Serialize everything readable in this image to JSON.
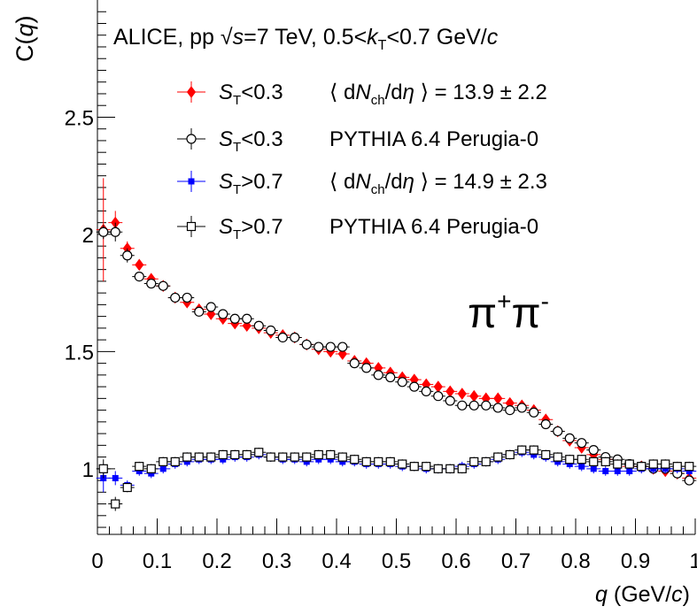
{
  "chart_data": {
    "type": "scatter",
    "header": {
      "prefix": "ALICE,  pp ",
      "sqrt": "√",
      "s": "s",
      "energy": "=7 TeV,  0.5<",
      "k": "k",
      "k_sub": "T",
      "range_tail": "<0.7 GeV/",
      "c": "c"
    },
    "annotation": {
      "main": "π",
      "sup1": "+",
      "main2": "π",
      "sup2": "-"
    },
    "ylabel": {
      "prefix": "C(",
      "q": "q",
      "suffix": ")"
    },
    "xlabel": {
      "q": "q",
      "mid": " (GeV/",
      "c": "c",
      "end": ")"
    },
    "xlim": [
      0,
      1
    ],
    "ylim": [
      0.72,
      3.0
    ],
    "x_ticks": [
      "0",
      "0.1",
      "0.2",
      "0.3",
      "0.4",
      "0.5",
      "0.6",
      "0.7",
      "0.8",
      "0.9",
      "1"
    ],
    "y_ticks": [
      "1",
      "1.5",
      "2",
      "2.5"
    ],
    "y_tick_values": [
      1,
      1.5,
      2,
      2.5
    ],
    "legend": [
      {
        "S": "S",
        "sub": "T",
        "cut": "<0.3",
        "desc1": "⟨ d",
        "N": "N",
        "nsub": "ch",
        "desc2": "/d",
        "eta": "η",
        "desc3": " ⟩ = 13.9 ± 2.2",
        "color": "#ff0000",
        "marker": "diamond"
      },
      {
        "S": "S",
        "sub": "T",
        "cut": "<0.3",
        "desc1": "PYTHIA 6.4 Perugia-0",
        "N": "",
        "nsub": "",
        "desc2": "",
        "eta": "",
        "desc3": "",
        "color": "#000000",
        "marker": "open-circle"
      },
      {
        "S": "S",
        "sub": "T",
        "cut": ">0.7",
        "desc1": "⟨ d",
        "N": "N",
        "nsub": "ch",
        "desc2": "/d",
        "eta": "η",
        "desc3": " ⟩ = 14.9 ± 2.3",
        "color": "#0000ff",
        "marker": "filled-square"
      },
      {
        "S": "S",
        "sub": "T",
        "cut": ">0.7",
        "desc1": "PYTHIA 6.4 Perugia-0",
        "N": "",
        "nsub": "",
        "desc2": "",
        "eta": "",
        "desc3": "",
        "color": "#000000",
        "marker": "open-square"
      }
    ],
    "x": [
      0.01,
      0.03,
      0.05,
      0.07,
      0.09,
      0.11,
      0.13,
      0.15,
      0.17,
      0.19,
      0.21,
      0.23,
      0.25,
      0.27,
      0.29,
      0.31,
      0.33,
      0.35,
      0.37,
      0.39,
      0.41,
      0.43,
      0.45,
      0.47,
      0.49,
      0.51,
      0.53,
      0.55,
      0.57,
      0.59,
      0.61,
      0.63,
      0.65,
      0.67,
      0.69,
      0.71,
      0.73,
      0.75,
      0.77,
      0.79,
      0.81,
      0.83,
      0.85,
      0.87,
      0.89,
      0.91,
      0.93,
      0.95,
      0.97,
      0.99
    ],
    "series": [
      {
        "name": "ST<0.3 data",
        "color": "#ff0000",
        "marker": "diamond",
        "values": [
          2.02,
          2.05,
          1.94,
          1.87,
          1.81,
          1.78,
          1.73,
          1.71,
          1.68,
          1.66,
          1.64,
          1.62,
          1.61,
          1.6,
          1.58,
          1.57,
          1.56,
          1.53,
          1.51,
          1.5,
          1.49,
          1.46,
          1.45,
          1.43,
          1.41,
          1.39,
          1.38,
          1.36,
          1.35,
          1.33,
          1.32,
          1.31,
          1.3,
          1.3,
          1.28,
          1.27,
          1.25,
          1.21,
          1.16,
          1.12,
          1.09,
          1.06,
          1.04,
          1.02,
          1.01,
          1.01,
          1.0,
          0.99,
          0.98,
          0.96
        ],
        "errors": [
          0.22,
          0.05,
          0.03,
          0.02,
          0.02,
          0.02,
          0.02,
          0.02,
          0.02,
          0.02,
          0.02,
          0.02,
          0.02,
          0.02,
          0.02,
          0.02,
          0.02,
          0.02,
          0.02,
          0.02,
          0.02,
          0.02,
          0.02,
          0.02,
          0.02,
          0.02,
          0.02,
          0.02,
          0.02,
          0.02,
          0.02,
          0.02,
          0.02,
          0.02,
          0.02,
          0.02,
          0.02,
          0.02,
          0.02,
          0.02,
          0.02,
          0.02,
          0.02,
          0.02,
          0.02,
          0.02,
          0.02,
          0.02,
          0.02,
          0.02
        ]
      },
      {
        "name": "ST<0.3 PYTHIA",
        "color": "#000000",
        "marker": "open-circle",
        "values": [
          2.01,
          2.01,
          1.91,
          1.82,
          1.79,
          1.78,
          1.73,
          1.73,
          1.67,
          1.69,
          1.66,
          1.64,
          1.64,
          1.61,
          1.59,
          1.56,
          1.56,
          1.53,
          1.52,
          1.52,
          1.52,
          1.45,
          1.43,
          1.4,
          1.39,
          1.37,
          1.35,
          1.33,
          1.31,
          1.29,
          1.27,
          1.27,
          1.27,
          1.26,
          1.25,
          1.26,
          1.24,
          1.19,
          1.16,
          1.13,
          1.11,
          1.08,
          1.05,
          1.04,
          1.02,
          1.01,
          1.0,
          1.0,
          0.98,
          0.95
        ],
        "errors": [
          0.03,
          0.04,
          0.03,
          0.02,
          0.02,
          0.02,
          0.02,
          0.02,
          0.02,
          0.02,
          0.02,
          0.02,
          0.02,
          0.02,
          0.02,
          0.02,
          0.02,
          0.02,
          0.02,
          0.02,
          0.02,
          0.02,
          0.02,
          0.02,
          0.02,
          0.02,
          0.02,
          0.02,
          0.02,
          0.02,
          0.02,
          0.02,
          0.02,
          0.02,
          0.02,
          0.02,
          0.02,
          0.02,
          0.02,
          0.02,
          0.02,
          0.02,
          0.02,
          0.02,
          0.02,
          0.02,
          0.02,
          0.02,
          0.02,
          0.02
        ]
      },
      {
        "name": "ST>0.7 data",
        "color": "#0000ff",
        "marker": "filled-square",
        "values": [
          0.96,
          0.96,
          0.93,
          0.99,
          0.98,
          1.0,
          1.02,
          1.03,
          1.04,
          1.04,
          1.04,
          1.05,
          1.05,
          1.06,
          1.05,
          1.04,
          1.04,
          1.03,
          1.04,
          1.04,
          1.03,
          1.03,
          1.02,
          1.02,
          1.02,
          1.01,
          1.01,
          1.0,
          1.0,
          1.0,
          1.01,
          1.02,
          1.03,
          1.04,
          1.06,
          1.07,
          1.06,
          1.05,
          1.03,
          1.02,
          1.01,
          1.0,
          0.99,
          0.99,
          0.99,
          1.0,
          1.0,
          1.0,
          1.0,
          0.99
        ],
        "errors": [
          0.06,
          0.03,
          0.02,
          0.02,
          0.02,
          0.02,
          0.02,
          0.02,
          0.02,
          0.02,
          0.02,
          0.02,
          0.02,
          0.02,
          0.02,
          0.02,
          0.02,
          0.02,
          0.02,
          0.02,
          0.02,
          0.02,
          0.02,
          0.02,
          0.02,
          0.02,
          0.02,
          0.02,
          0.02,
          0.02,
          0.02,
          0.02,
          0.02,
          0.02,
          0.02,
          0.02,
          0.02,
          0.02,
          0.02,
          0.02,
          0.02,
          0.02,
          0.02,
          0.02,
          0.02,
          0.02,
          0.02,
          0.02,
          0.02,
          0.02
        ]
      },
      {
        "name": "ST>0.7 PYTHIA",
        "color": "#000000",
        "marker": "open-square",
        "values": [
          1.0,
          0.85,
          0.92,
          1.01,
          1.0,
          1.03,
          1.03,
          1.05,
          1.05,
          1.05,
          1.06,
          1.06,
          1.06,
          1.07,
          1.05,
          1.05,
          1.05,
          1.05,
          1.06,
          1.06,
          1.05,
          1.04,
          1.03,
          1.03,
          1.03,
          1.02,
          1.01,
          1.01,
          1.0,
          1.0,
          1.0,
          1.03,
          1.03,
          1.05,
          1.06,
          1.08,
          1.08,
          1.06,
          1.05,
          1.04,
          1.04,
          1.03,
          1.03,
          1.02,
          1.02,
          1.01,
          1.02,
          1.02,
          1.01,
          1.01
        ],
        "errors": [
          0.04,
          0.03,
          0.02,
          0.02,
          0.02,
          0.02,
          0.02,
          0.02,
          0.02,
          0.02,
          0.02,
          0.02,
          0.02,
          0.02,
          0.02,
          0.02,
          0.02,
          0.02,
          0.02,
          0.02,
          0.02,
          0.02,
          0.02,
          0.02,
          0.02,
          0.02,
          0.02,
          0.02,
          0.02,
          0.02,
          0.02,
          0.02,
          0.02,
          0.02,
          0.02,
          0.02,
          0.02,
          0.02,
          0.02,
          0.02,
          0.02,
          0.02,
          0.02,
          0.02,
          0.02,
          0.02,
          0.02,
          0.02,
          0.02,
          0.02
        ]
      }
    ],
    "grid": false,
    "legend_placement": "top"
  }
}
